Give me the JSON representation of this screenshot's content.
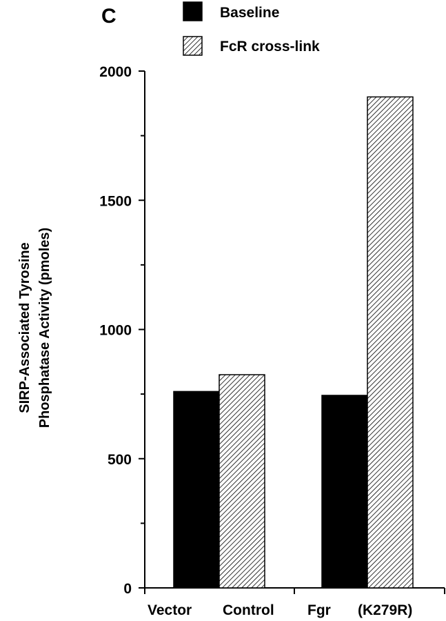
{
  "panel_label": "C",
  "chart_data": {
    "type": "bar",
    "categories": [
      "Vector Control",
      "Fgr (K279R)"
    ],
    "category_label_parts": [
      [
        "Vector",
        "Control"
      ],
      [
        "Fgr",
        "(K279R)"
      ]
    ],
    "series": [
      {
        "name": "Baseline",
        "values": [
          760,
          745
        ],
        "fill": "solid",
        "color": "#000000"
      },
      {
        "name": "FcR cross-link",
        "values": [
          825,
          1900
        ],
        "fill": "hatched",
        "color": "#000000"
      }
    ],
    "ylabel_lines": [
      "SIRP-Associated Tyrosine",
      "Phosphatase Activity (pmoles)"
    ],
    "yticks": [
      0,
      500,
      1000,
      1500,
      2000
    ],
    "ylim": [
      0,
      2000
    ],
    "grid": false,
    "legend_position": "top"
  }
}
